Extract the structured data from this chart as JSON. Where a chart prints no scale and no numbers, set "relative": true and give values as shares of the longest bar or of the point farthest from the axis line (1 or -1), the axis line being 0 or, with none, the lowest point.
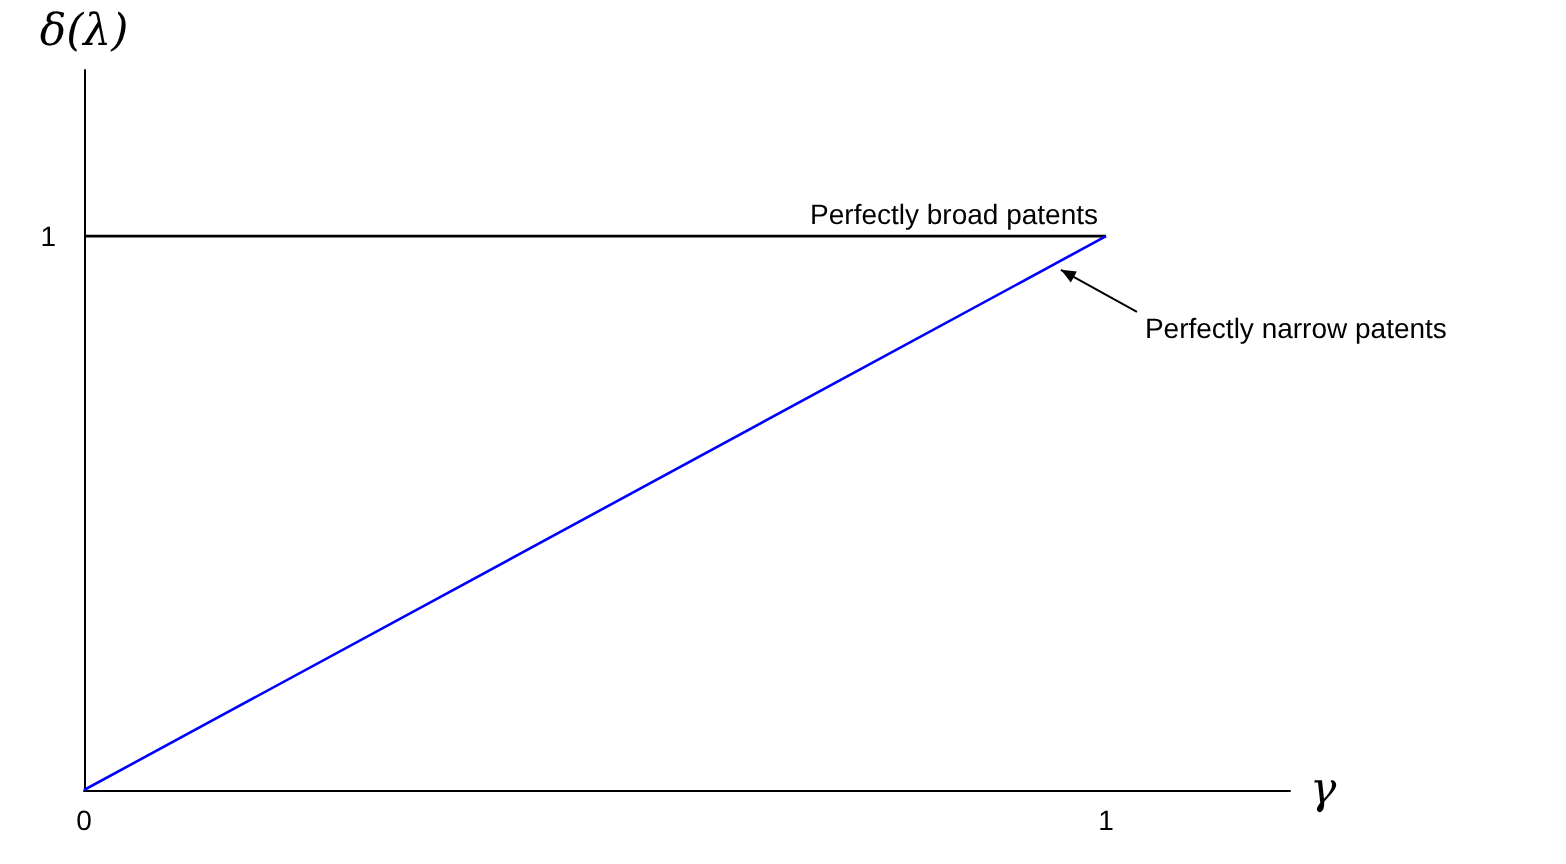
{
  "chart_data": {
    "type": "line",
    "xlabel": "γ",
    "ylabel": "δ(λ)",
    "relative": true,
    "xlim": [
      0,
      1.18
    ],
    "xticks": [
      0,
      1
    ],
    "x": [
      0,
      1
    ],
    "series": [
      {
        "name": "Perfectly broad patents",
        "color": "#000000",
        "values": [
          1,
          1
        ]
      },
      {
        "name": "Perfectly narrow patents",
        "color": "#0000ff",
        "values": [
          0,
          1
        ]
      }
    ],
    "annotations": [
      "1"
    ],
    "grid": false,
    "legend": false,
    "marker": "none",
    "line_style": "solid"
  }
}
